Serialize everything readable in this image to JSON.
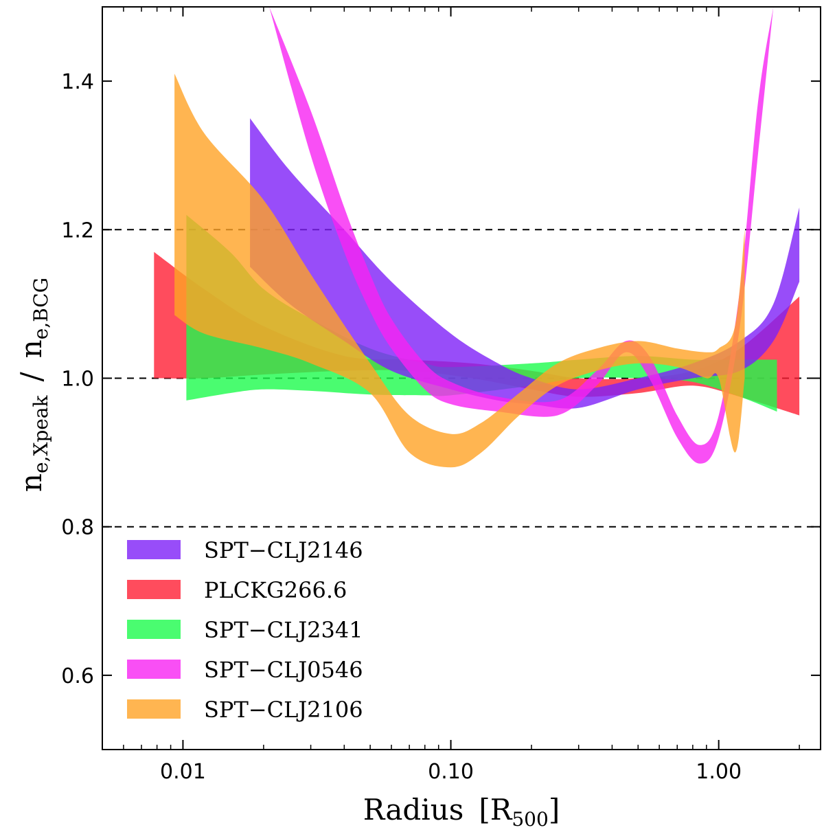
{
  "chart_data": {
    "type": "area",
    "xscale": "log",
    "xlim": [
      0.005,
      2.4
    ],
    "ylim": [
      0.5,
      1.5
    ],
    "xlabel": {
      "text": "Radius",
      "unit_main": "R",
      "unit_sub": "500"
    },
    "ylabel": {
      "num_main": "n",
      "num_sub": "e,Xpeak",
      "sep": "/",
      "den_main": "n",
      "den_sub": "e,BCG"
    },
    "x_ticks": [
      {
        "value": 0.01,
        "label": "0.01"
      },
      {
        "value": 0.1,
        "label": "0.10"
      },
      {
        "value": 1.0,
        "label": "1.00"
      }
    ],
    "y_ticks": [
      {
        "value": 0.6,
        "label": "0.6"
      },
      {
        "value": 0.8,
        "label": "0.8"
      },
      {
        "value": 1.0,
        "label": "1.0"
      },
      {
        "value": 1.2,
        "label": "1.2"
      },
      {
        "value": 1.4,
        "label": "1.4"
      }
    ],
    "reference_lines": [
      0.8,
      1.0,
      1.2
    ],
    "legend_position": "lower-left",
    "series": [
      {
        "name": "PLCKG266.6",
        "color": "#ff1f35",
        "x": [
          0.0078,
          0.012,
          0.02,
          0.04,
          0.07,
          0.12,
          0.2,
          0.3,
          0.5,
          0.8,
          1.2,
          2.0
        ],
        "lower": [
          1.0,
          1.0,
          1.005,
          1.01,
          1.01,
          1.0,
          0.985,
          0.975,
          0.98,
          0.99,
          0.975,
          0.95
        ],
        "upper": [
          1.17,
          1.12,
          1.07,
          1.03,
          1.025,
          1.02,
          1.01,
          1.0,
          1.0,
          1.01,
          1.04,
          1.11
        ]
      },
      {
        "name": "SPT−CLJ2341",
        "color": "#1dfb4c",
        "x": [
          0.0103,
          0.015,
          0.02,
          0.03,
          0.05,
          0.08,
          0.1,
          0.2,
          0.3,
          0.5,
          0.8,
          1.2,
          1.65
        ],
        "lower": [
          0.97,
          0.98,
          0.985,
          0.983,
          0.978,
          0.977,
          0.977,
          0.99,
          1.0,
          1.0,
          0.995,
          0.975,
          0.955
        ],
        "upper": [
          1.22,
          1.17,
          1.12,
          1.08,
          1.04,
          1.02,
          1.015,
          1.02,
          1.025,
          1.03,
          1.025,
          1.025,
          1.025
        ]
      },
      {
        "name": "SPT−CLJ2146",
        "color": "#7e21f7",
        "x": [
          0.0178,
          0.025,
          0.04,
          0.06,
          0.1,
          0.15,
          0.2,
          0.3,
          0.5,
          0.8,
          1.2,
          1.6,
          2.0
        ],
        "lower": [
          1.15,
          1.1,
          1.05,
          1.01,
          0.985,
          0.97,
          0.965,
          0.96,
          0.985,
          1.0,
          1.01,
          1.05,
          1.13
        ],
        "upper": [
          1.35,
          1.28,
          1.2,
          1.13,
          1.06,
          1.02,
          1.0,
          0.985,
          1.0,
          1.02,
          1.05,
          1.1,
          1.23
        ]
      },
      {
        "name": "SPT−CLJ0546",
        "color": "#f723f3",
        "x": [
          0.021,
          0.03,
          0.04,
          0.05,
          0.06,
          0.08,
          0.1,
          0.15,
          0.25,
          0.35,
          0.45,
          0.55,
          0.7,
          0.85,
          1.0,
          1.2,
          1.4,
          1.6
        ],
        "lower": [
          1.5,
          1.3,
          1.17,
          1.09,
          1.04,
          0.985,
          0.965,
          0.955,
          0.95,
          0.99,
          1.035,
          1.0,
          0.92,
          0.885,
          0.92,
          1.07,
          1.3,
          1.5
        ],
        "upper": [
          1.5,
          1.36,
          1.23,
          1.14,
          1.08,
          1.02,
          0.995,
          0.975,
          0.97,
          1.01,
          1.05,
          1.03,
          0.95,
          0.91,
          0.95,
          1.12,
          1.37,
          1.5
        ]
      },
      {
        "name": "SPT−CLJ2106",
        "color": "#ffa226",
        "x": [
          0.0093,
          0.012,
          0.02,
          0.03,
          0.05,
          0.07,
          0.1,
          0.13,
          0.18,
          0.25,
          0.35,
          0.5,
          0.7,
          0.9,
          1.0,
          1.15,
          1.25
        ],
        "lower": [
          1.085,
          1.06,
          1.04,
          1.02,
          0.98,
          0.9,
          0.88,
          0.9,
          0.95,
          0.99,
          1.01,
          1.02,
          1.015,
          1.0,
          1.0,
          0.9,
          1.0
        ],
        "upper": [
          1.41,
          1.33,
          1.24,
          1.14,
          1.02,
          0.95,
          0.925,
          0.94,
          0.98,
          1.02,
          1.04,
          1.05,
          1.04,
          1.035,
          1.04,
          1.07,
          1.2
        ]
      }
    ],
    "legend_order": [
      "SPT−CLJ2146",
      "PLCKG266.6",
      "SPT−CLJ2341",
      "SPT−CLJ0546",
      "SPT−CLJ2106"
    ]
  }
}
